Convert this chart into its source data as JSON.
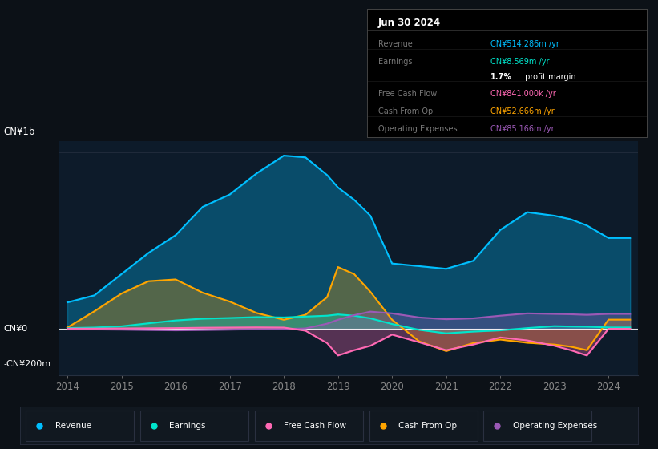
{
  "x": [
    2014,
    2014.5,
    2015,
    2015.5,
    2016,
    2016.5,
    2017,
    2017.5,
    2018,
    2018.4,
    2018.8,
    2019,
    2019.3,
    2019.6,
    2020,
    2020.5,
    2021,
    2021.5,
    2022,
    2022.5,
    2023,
    2023.3,
    2023.6,
    2024,
    2024.4
  ],
  "revenue": [
    150,
    190,
    310,
    430,
    530,
    690,
    760,
    880,
    980,
    970,
    870,
    800,
    730,
    640,
    370,
    355,
    340,
    385,
    560,
    660,
    640,
    620,
    585,
    514,
    514
  ],
  "earnings": [
    5,
    8,
    15,
    32,
    48,
    58,
    62,
    67,
    65,
    70,
    75,
    82,
    75,
    60,
    28,
    -5,
    -25,
    -15,
    -8,
    5,
    16,
    14,
    13,
    8.569,
    8.569
  ],
  "free_cf": [
    2,
    2,
    3,
    4,
    5,
    7,
    8,
    9,
    8,
    -10,
    -80,
    -150,
    -120,
    -95,
    -32,
    -75,
    -120,
    -88,
    -48,
    -65,
    -95,
    -120,
    -150,
    0.841,
    0.841
  ],
  "cash_op": [
    8,
    100,
    200,
    270,
    280,
    205,
    155,
    90,
    52,
    80,
    180,
    350,
    310,
    210,
    52,
    -70,
    -125,
    -80,
    -60,
    -78,
    -88,
    -100,
    -120,
    52.666,
    52.666
  ],
  "op_exp": [
    -3,
    -3,
    -4,
    -6,
    -8,
    -6,
    -4,
    -2,
    0,
    3,
    30,
    52,
    78,
    98,
    88,
    65,
    55,
    60,
    75,
    88,
    85,
    83,
    80,
    85.166,
    85.166
  ],
  "revenue_color": "#00bfff",
  "earnings_color": "#00e5cc",
  "free_cf_color": "#ff69b4",
  "cash_op_color": "#ffa500",
  "op_exp_color": "#9b59b6",
  "fill_alpha": 0.3,
  "bg_color": "#0c1117",
  "plot_bg_color": "#0d1b2a",
  "grid_color": "#263040",
  "text_color": "#888888",
  "white": "#ffffff",
  "ylim": [
    -260,
    1060
  ],
  "xlim": [
    2013.85,
    2024.55
  ],
  "xticks": [
    2014,
    2015,
    2016,
    2017,
    2018,
    2019,
    2020,
    2021,
    2022,
    2023,
    2024
  ],
  "ylabel_top": "CN¥1b",
  "ylabel_zero": "CN¥0",
  "ylabel_bottom": "-CN¥200m",
  "info_title": "Jun 30 2024",
  "info_rows": [
    {
      "label": "Revenue",
      "value": "CN¥514.286m /yr",
      "color": "#00bfff"
    },
    {
      "label": "Earnings",
      "value": "CN¥8.569m /yr",
      "color": "#00e5cc"
    },
    {
      "label": "",
      "value": "1.7% profit margin",
      "color": "#cccccc",
      "pct": "1.7%"
    },
    {
      "label": "Free Cash Flow",
      "value": "CN¥841.000k /yr",
      "color": "#ff69b4"
    },
    {
      "label": "Cash From Op",
      "value": "CN¥52.666m /yr",
      "color": "#ffa500"
    },
    {
      "label": "Operating Expenses",
      "value": "CN¥85.166m /yr",
      "color": "#9b59b6"
    }
  ],
  "legend": [
    {
      "label": "Revenue",
      "color": "#00bfff"
    },
    {
      "label": "Earnings",
      "color": "#00e5cc"
    },
    {
      "label": "Free Cash Flow",
      "color": "#ff69b4"
    },
    {
      "label": "Cash From Op",
      "color": "#ffa500"
    },
    {
      "label": "Operating Expenses",
      "color": "#9b59b6"
    }
  ]
}
